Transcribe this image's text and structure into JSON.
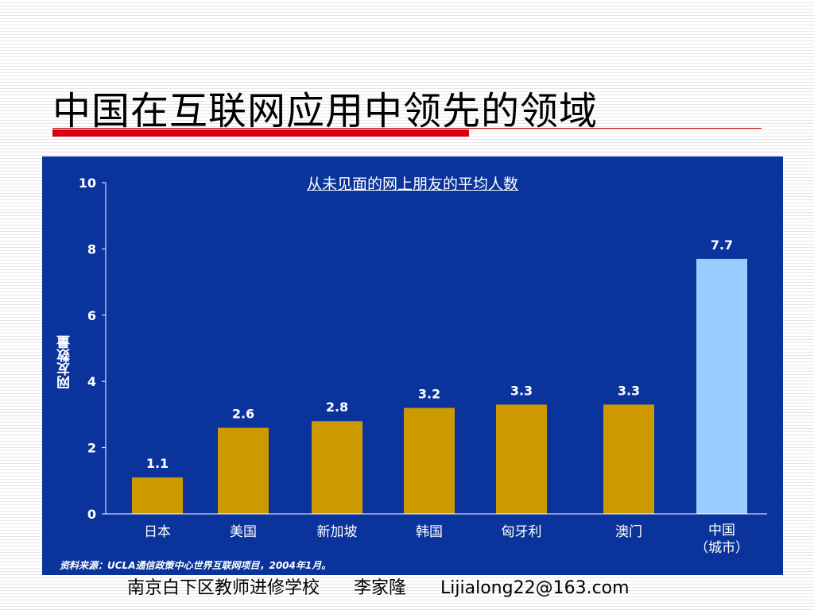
{
  "slide": {
    "title": "中国在互联网应用中领先的领域"
  },
  "chart_data": {
    "type": "bar",
    "title": "从未见面的网上朋友的平均人数",
    "ylabel": "网友数量",
    "xlabel": "",
    "ylim": [
      0,
      10
    ],
    "yticks": [
      "0",
      "2",
      "4",
      "6",
      "8",
      "10"
    ],
    "categories": [
      "日本",
      "美国",
      "新加坡",
      "韩国",
      "匈牙利",
      "澳门",
      "中国（城市）"
    ],
    "values": [
      1.1,
      2.6,
      2.8,
      3.2,
      3.3,
      3.3,
      7.7
    ],
    "value_labels": [
      "1.1",
      "2.6",
      "2.8",
      "3.2",
      "3.3",
      "3.3",
      "7.7"
    ],
    "highlight_index": 6,
    "grid": false,
    "colors": {
      "panel": "#0a349b",
      "bar": "#cc9900",
      "highlight_bar": "#99ccff",
      "text": "#ffffff"
    },
    "source": "资料来源：UCLA通信政策中心世界互联网项目，2004年1月。"
  },
  "footer": {
    "school": "南京白下区教师进修学校",
    "author": "李家隆",
    "email": "Lijialong22@163.com"
  }
}
